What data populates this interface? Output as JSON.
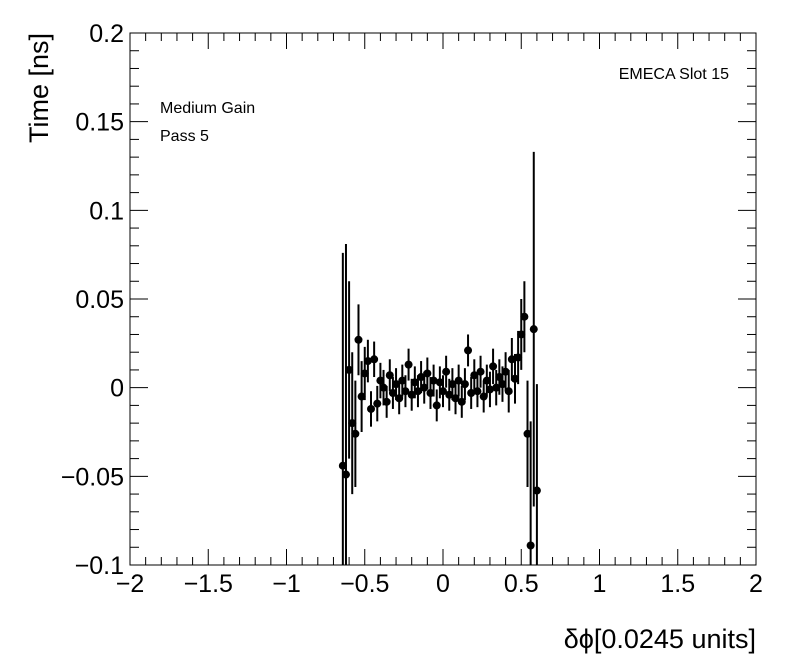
{
  "chart_data": {
    "type": "errorbar",
    "labels": [
      "EMECA Slot 15",
      "Medium Gain",
      "Pass 5"
    ],
    "xlabel": "δϕ[0.0245 units]",
    "ylabel": "Time [ns]",
    "xlim": [
      -2,
      2
    ],
    "ylim": [
      -0.1,
      0.2
    ],
    "xticks": [
      {
        "value": -2,
        "label": "−2"
      },
      {
        "value": -1.5,
        "label": "−1.5"
      },
      {
        "value": -1,
        "label": "−1"
      },
      {
        "value": -0.5,
        "label": "−0.5"
      },
      0,
      0.5,
      1,
      1.5,
      2
    ],
    "yticks": [
      {
        "value": -0.1,
        "label": "−0.1"
      },
      {
        "value": -0.05,
        "label": "−0.05"
      },
      0,
      0.05,
      0.1,
      0.15,
      0.2
    ],
    "x": [
      -0.64,
      -0.62,
      -0.6,
      -0.58,
      -0.56,
      -0.54,
      -0.52,
      -0.5,
      -0.48,
      -0.46,
      -0.44,
      -0.42,
      -0.4,
      -0.38,
      -0.36,
      -0.34,
      -0.32,
      -0.3,
      -0.28,
      -0.26,
      -0.24,
      -0.22,
      -0.2,
      -0.18,
      -0.16,
      -0.14,
      -0.12,
      -0.1,
      -0.08,
      -0.06,
      -0.04,
      -0.02,
      0,
      0.02,
      0.04,
      0.06,
      0.08,
      0.1,
      0.12,
      0.14,
      0.16,
      0.18,
      0.2,
      0.22,
      0.24,
      0.26,
      0.28,
      0.3,
      0.32,
      0.34,
      0.36,
      0.38,
      0.4,
      0.42,
      0.44,
      0.46,
      0.48,
      0.5,
      0.52,
      0.54,
      0.56,
      0.58,
      0.6
    ],
    "series": [
      {
        "color": "#000000",
        "values": [
          -0.044,
          -0.049,
          0.01,
          -0.02,
          -0.026,
          0.027,
          -0.005,
          0.008,
          0.015,
          -0.012,
          0.016,
          -0.009,
          0.004,
          0,
          -0.008,
          0.007,
          -0.003,
          0.002,
          -0.006,
          0.004,
          -0.002,
          0.013,
          -0.004,
          0.003,
          -0.002,
          0.006,
          0,
          0.008,
          -0.003,
          0.004,
          -0.01,
          0.003,
          -0.002,
          0.009,
          -0.004,
          0.002,
          -0.006,
          0.004,
          -0.008,
          0.002,
          0.021,
          -0.003,
          0.007,
          -0.002,
          0.009,
          -0.005,
          0.004,
          -0.001,
          0.012,
          0,
          0.006,
          0.002,
          0.009,
          -0.002,
          0.016,
          0.005,
          0.017,
          0.03,
          0.04,
          -0.026,
          -0.089,
          0.033,
          -0.058
        ],
        "errors": [
          0.12,
          0.13,
          0.05,
          0.04,
          0.03,
          0.02,
          0.02,
          0.015,
          0.012,
          0.01,
          0.01,
          0.01,
          0.01,
          0.01,
          0.009,
          0.009,
          0.009,
          0.009,
          0.009,
          0.009,
          0.009,
          0.009,
          0.009,
          0.009,
          0.009,
          0.009,
          0.009,
          0.009,
          0.009,
          0.009,
          0.009,
          0.009,
          0.009,
          0.009,
          0.009,
          0.009,
          0.009,
          0.009,
          0.009,
          0.009,
          0.009,
          0.009,
          0.009,
          0.009,
          0.009,
          0.009,
          0.009,
          0.01,
          0.01,
          0.01,
          0.01,
          0.01,
          0.011,
          0.012,
          0.012,
          0.014,
          0.015,
          0.02,
          0.02,
          0.03,
          0.07,
          0.1,
          0.06
        ]
      }
    ]
  }
}
